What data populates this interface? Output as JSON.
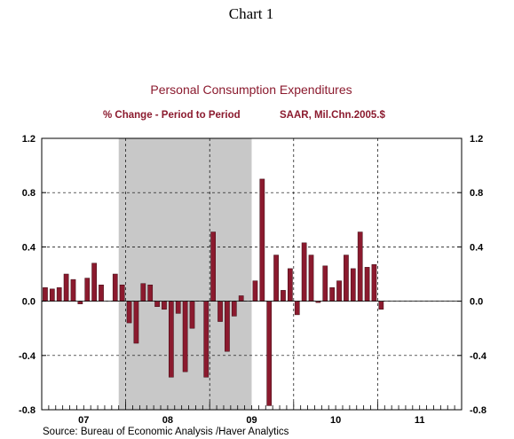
{
  "page_heading": "Chart 1",
  "chart_data": {
    "type": "bar",
    "title": "Personal Consumption Expenditures",
    "subtitle_left": "% Change - Period to Period",
    "subtitle_right": "SAAR, Mil.Chn.2005.$",
    "source": "Source:  Bureau of Economic Analysis /Haver Analytics",
    "x_start": "2007-01",
    "x_end": "2011-12",
    "ylim": [
      -0.8,
      1.2
    ],
    "y_ticks": [
      1.2,
      0.8,
      0.4,
      0.0,
      -0.4,
      -0.8
    ],
    "y_tick_labels": [
      "1.2",
      "0.8",
      "0.4",
      "0.0",
      "-0.4",
      "-0.8"
    ],
    "x_year_labels": [
      {
        "label": "07",
        "year": 2007
      },
      {
        "label": "08",
        "year": 2008
      },
      {
        "label": "09",
        "year": 2009
      },
      {
        "label": "10",
        "year": 2010
      },
      {
        "label": "11",
        "year": 2011
      }
    ],
    "dashed_verticals": [
      "2008-01",
      "2009-01",
      "2010-01",
      "2011-01"
    ],
    "recession": {
      "start": "2007-12",
      "end": "2009-06"
    },
    "grid": "dashed horizontal and vertical",
    "colors": {
      "bar": "#8b1a2e",
      "bar_edge": "#3a0a12",
      "title": "#8b1a2e",
      "recession": "#c8c8c8"
    },
    "series": [
      {
        "values": [
          {
            "x": "2007-01",
            "y": 0.1
          },
          {
            "x": "2007-02",
            "y": 0.09
          },
          {
            "x": "2007-03",
            "y": 0.1
          },
          {
            "x": "2007-04",
            "y": 0.2
          },
          {
            "x": "2007-05",
            "y": 0.16
          },
          {
            "x": "2007-06",
            "y": -0.02
          },
          {
            "x": "2007-07",
            "y": 0.17
          },
          {
            "x": "2007-08",
            "y": 0.28
          },
          {
            "x": "2007-09",
            "y": 0.12
          },
          {
            "x": "2007-10",
            "y": 0.0
          },
          {
            "x": "2007-11",
            "y": 0.2
          },
          {
            "x": "2007-12",
            "y": 0.12
          },
          {
            "x": "2008-01",
            "y": -0.16
          },
          {
            "x": "2008-02",
            "y": -0.31
          },
          {
            "x": "2008-03",
            "y": 0.13
          },
          {
            "x": "2008-04",
            "y": 0.12
          },
          {
            "x": "2008-05",
            "y": -0.04
          },
          {
            "x": "2008-06",
            "y": -0.06
          },
          {
            "x": "2008-07",
            "y": -0.56
          },
          {
            "x": "2008-08",
            "y": -0.09
          },
          {
            "x": "2008-09",
            "y": -0.52
          },
          {
            "x": "2008-10",
            "y": -0.2
          },
          {
            "x": "2008-11",
            "y": 0.0
          },
          {
            "x": "2008-12",
            "y": -0.56
          },
          {
            "x": "2009-01",
            "y": 0.51
          },
          {
            "x": "2009-02",
            "y": -0.15
          },
          {
            "x": "2009-03",
            "y": -0.37
          },
          {
            "x": "2009-04",
            "y": -0.11
          },
          {
            "x": "2009-05",
            "y": 0.04
          },
          {
            "x": "2009-06",
            "y": 0.0
          },
          {
            "x": "2009-07",
            "y": 0.15
          },
          {
            "x": "2009-08",
            "y": 0.9
          },
          {
            "x": "2009-09",
            "y": -0.77
          },
          {
            "x": "2009-10",
            "y": 0.34
          },
          {
            "x": "2009-11",
            "y": 0.08
          },
          {
            "x": "2009-12",
            "y": 0.24
          },
          {
            "x": "2010-01",
            "y": -0.1
          },
          {
            "x": "2010-02",
            "y": 0.43
          },
          {
            "x": "2010-03",
            "y": 0.34
          },
          {
            "x": "2010-04",
            "y": -0.01
          },
          {
            "x": "2010-05",
            "y": 0.26
          },
          {
            "x": "2010-06",
            "y": 0.1
          },
          {
            "x": "2010-07",
            "y": 0.15
          },
          {
            "x": "2010-08",
            "y": 0.34
          },
          {
            "x": "2010-09",
            "y": 0.24
          },
          {
            "x": "2010-10",
            "y": 0.51
          },
          {
            "x": "2010-11",
            "y": 0.25
          },
          {
            "x": "2010-12",
            "y": 0.27
          },
          {
            "x": "2011-01",
            "y": -0.06
          }
        ]
      }
    ]
  }
}
